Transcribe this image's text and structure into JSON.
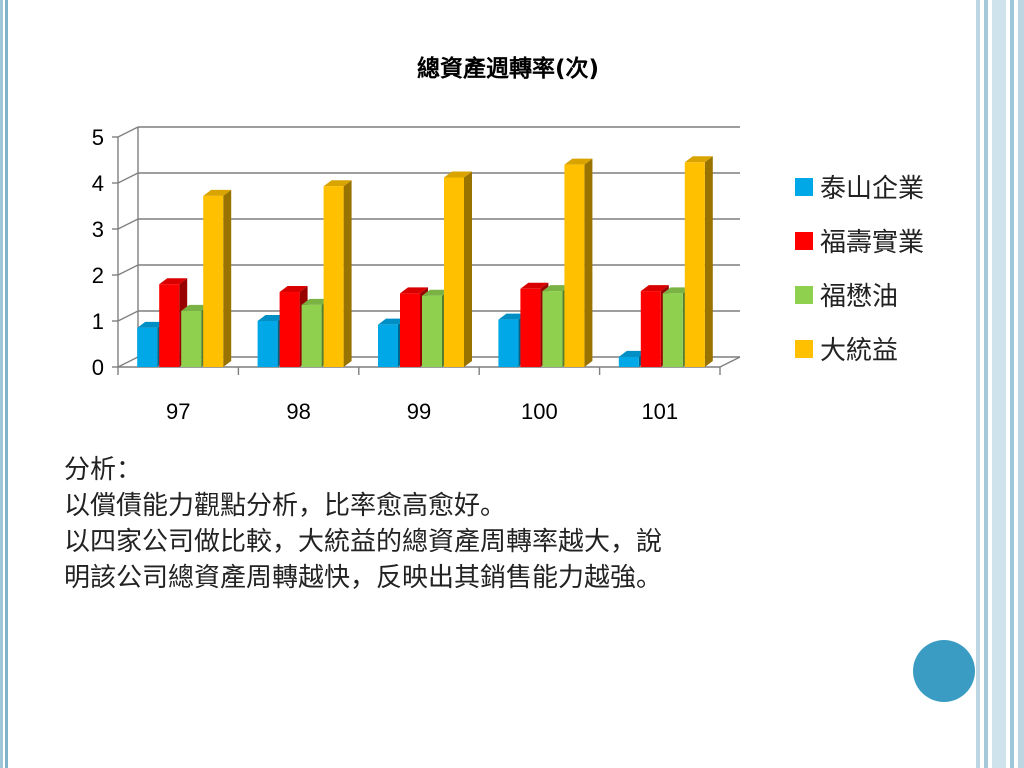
{
  "chart_data": {
    "type": "bar",
    "title": "總資產週轉率(次)",
    "categories": [
      "97",
      "98",
      "99",
      "100",
      "101"
    ],
    "series": [
      {
        "name": "泰山企業",
        "color": "#00a8e8",
        "values": [
          0.85,
          1.0,
          0.92,
          1.03,
          0.22
        ]
      },
      {
        "name": "福壽實業",
        "color": "#ff0000",
        "values": [
          1.8,
          1.63,
          1.6,
          1.7,
          1.65
        ]
      },
      {
        "name": "福懋油",
        "color": "#8fd14f",
        "values": [
          1.22,
          1.35,
          1.55,
          1.65,
          1.6
        ]
      },
      {
        "name": "大統益",
        "color": "#ffc000",
        "values": [
          3.72,
          3.93,
          4.12,
          4.4,
          4.45
        ]
      }
    ],
    "ylim": [
      0,
      5
    ],
    "yticks": [
      "0",
      "1",
      "2",
      "3",
      "4",
      "5"
    ],
    "grid": true,
    "legend_position": "right",
    "chart_style": "3d-column"
  },
  "analysis": {
    "heading": "分析：",
    "lines": [
      "以償債能力觀點分析，比率愈高愈好。",
      "以四家公司做比較，大統益的總資產周轉率越大，說",
      "明該公司總資產周轉越快，反映出其銷售能力越強。"
    ]
  },
  "theme": {
    "accent_circle": "#3a9cc3",
    "border": "#9ec7d8"
  }
}
